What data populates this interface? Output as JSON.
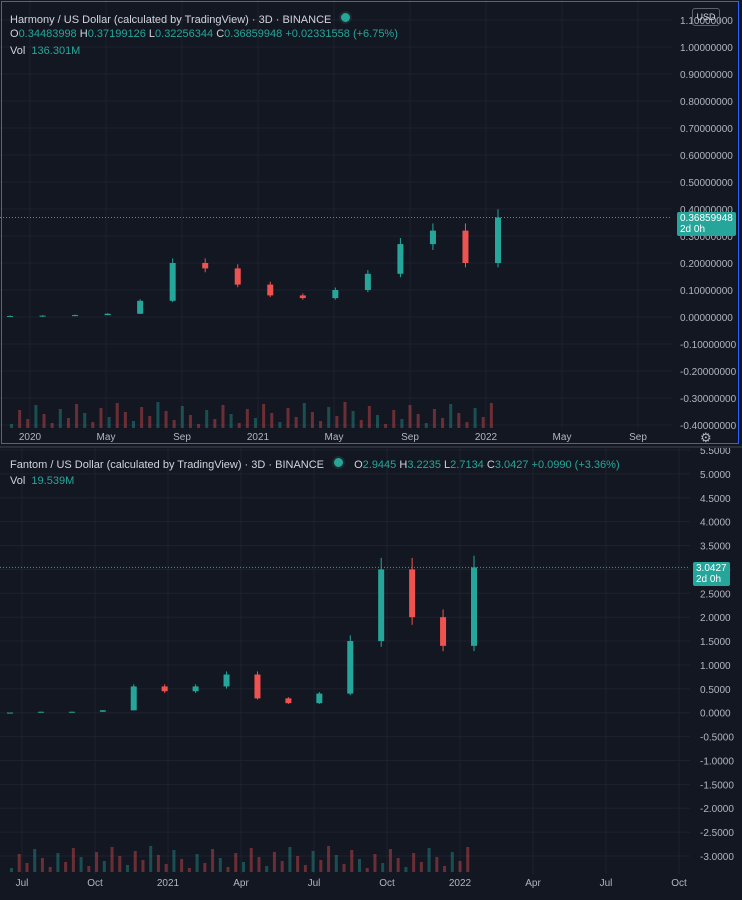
{
  "panes": [
    {
      "id": "harmony",
      "title": "Harmony / US Dollar (calculated by TradingView) · 3D · BINANCE",
      "ohlc": {
        "o_label": "O",
        "o": "0.34483998",
        "h_label": "H",
        "h": "0.37199126",
        "l_label": "L",
        "l": "0.32256344",
        "c_label": "C",
        "c": "0.36859948",
        "change": "+0.02331558 (+6.75%)"
      },
      "volume": {
        "label": "Vol",
        "value": "136.301M"
      },
      "currency": "USD",
      "last_price": "0.36859948",
      "countdown": "2d 0h",
      "y_ticks": [
        "1.10000000",
        "1.00000000",
        "0.90000000",
        "0.80000000",
        "0.70000000",
        "0.60000000",
        "0.50000000",
        "0.40000000",
        "0.30000000",
        "0.20000000",
        "0.10000000",
        "0.00000000",
        "-0.10000000",
        "-0.20000000",
        "-0.30000000",
        "-0.40000000"
      ],
      "x_ticks": [
        "2020",
        "May",
        "Sep",
        "2021",
        "May",
        "Sep",
        "2022",
        "May",
        "Sep"
      ]
    },
    {
      "id": "fantom",
      "title": "Fantom / US Dollar (calculated by TradingView) · 3D · BINANCE",
      "ohlc": {
        "o_label": "O",
        "o": "2.9445",
        "h_label": "H",
        "h": "3.2235",
        "l_label": "L",
        "l": "2.7134",
        "c_label": "C",
        "c": "3.0427",
        "change": "+0.0990 (+3.36%)"
      },
      "volume": {
        "label": "Vol",
        "value": "19.539M"
      },
      "last_price": "3.0427",
      "countdown": "2d 0h",
      "y_ticks": [
        "5.5000",
        "5.0000",
        "4.5000",
        "4.0000",
        "3.5000",
        "3.0000",
        "2.5000",
        "2.0000",
        "1.5000",
        "1.0000",
        "0.5000",
        "0.0000",
        "-0.5000",
        "-1.0000",
        "-1.5000",
        "-2.0000",
        "-2.5000",
        "-3.0000"
      ],
      "x_ticks": [
        "Jul",
        "Oct",
        "2021",
        "Apr",
        "Jul",
        "Oct",
        "2022",
        "Apr",
        "Jul",
        "Oct"
      ]
    }
  ],
  "chart_data": [
    {
      "type": "candlestick",
      "title": "Harmony / US Dollar (calculated by TradingView) · 3D · BINANCE",
      "x": [
        "2020-01",
        "2020-05",
        "2020-09",
        "2021-01",
        "2021-02",
        "2021-03",
        "2021-04",
        "2021-05",
        "2021-06",
        "2021-07",
        "2021-08",
        "2021-09",
        "2021-10",
        "2021-11",
        "2021-12",
        "2022-01"
      ],
      "close": [
        0.004,
        0.005,
        0.007,
        0.012,
        0.06,
        0.2,
        0.18,
        0.12,
        0.08,
        0.07,
        0.1,
        0.16,
        0.27,
        0.32,
        0.2,
        0.3686
      ],
      "ylim": [
        -0.4,
        1.1
      ],
      "colors": {
        "up": "#26a69a",
        "down": "#ef5350"
      }
    },
    {
      "type": "candlestick",
      "title": "Fantom / US Dollar (calculated by TradingView) · 3D · BINANCE",
      "x": [
        "2020-06",
        "2020-09",
        "2020-12",
        "2021-01",
        "2021-02",
        "2021-03",
        "2021-04",
        "2021-05",
        "2021-06",
        "2021-07",
        "2021-08",
        "2021-09",
        "2021-10",
        "2021-11",
        "2021-12",
        "2022-01"
      ],
      "close": [
        0.003,
        0.02,
        0.02,
        0.05,
        0.55,
        0.45,
        0.55,
        0.8,
        0.3,
        0.2,
        0.4,
        1.5,
        3.0,
        2.0,
        1.4,
        3.0427
      ],
      "ylim": [
        -3.0,
        5.5
      ],
      "colors": {
        "up": "#26a69a",
        "down": "#ef5350"
      }
    }
  ]
}
